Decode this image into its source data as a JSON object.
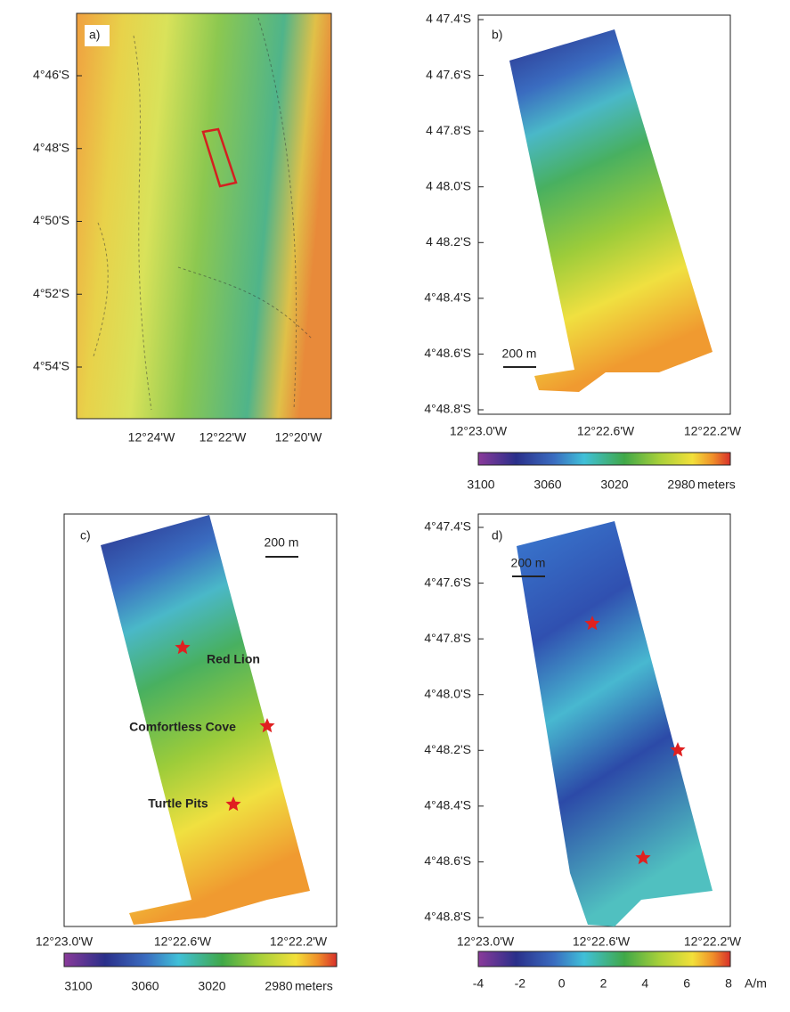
{
  "panels": [
    {
      "label": "a)",
      "y_labels": [
        "4°46'S",
        "4°48'S",
        "4°50'S",
        "4°52'S",
        "4°54'S"
      ],
      "x_labels": [
        "12°24'W",
        "12°22'W",
        "12°20'W"
      ]
    },
    {
      "label": "b)",
      "y_labels": [
        "4 47.4'S",
        "4 47.6'S",
        "4 47.8'S",
        "4 48.0'S",
        "4 48.2'S",
        "4°48.4'S",
        "4°48.6'S",
        "4°48.8'S"
      ],
      "x_labels": [
        "12°23.0'W",
        "12°22.6'W",
        "12°22.2'W"
      ],
      "scale_bar": "200 m",
      "colorbar": {
        "ticks": [
          "3100",
          "3060",
          "3020",
          "2980"
        ],
        "unit": "meters"
      }
    },
    {
      "label": "c)",
      "x_labels": [
        "12°23.0'W",
        "12°22.6'W",
        "12°22.2'W"
      ],
      "scale_bar": "200 m",
      "annotations": [
        "Red Lion",
        "Comfortless Cove",
        "Turtle Pits"
      ],
      "colorbar": {
        "ticks": [
          "3100",
          "3060",
          "3020",
          "2980"
        ],
        "unit": "meters"
      }
    },
    {
      "label": "d)",
      "y_labels": [
        "4°47.4'S",
        "4°47.6'S",
        "4°47.8'S",
        "4°48.0'S",
        "4°48.2'S",
        "4°48.4'S",
        "4°48.6'S",
        "4°48.8'S"
      ],
      "x_labels": [
        "12°23.0'W",
        "12°22.6'W",
        "12°22.2'W"
      ],
      "scale_bar": "200 m",
      "colorbar": {
        "ticks": [
          "-4",
          "-2",
          "0",
          "2",
          "4",
          "6",
          "8"
        ],
        "unit": "A/m"
      }
    }
  ]
}
